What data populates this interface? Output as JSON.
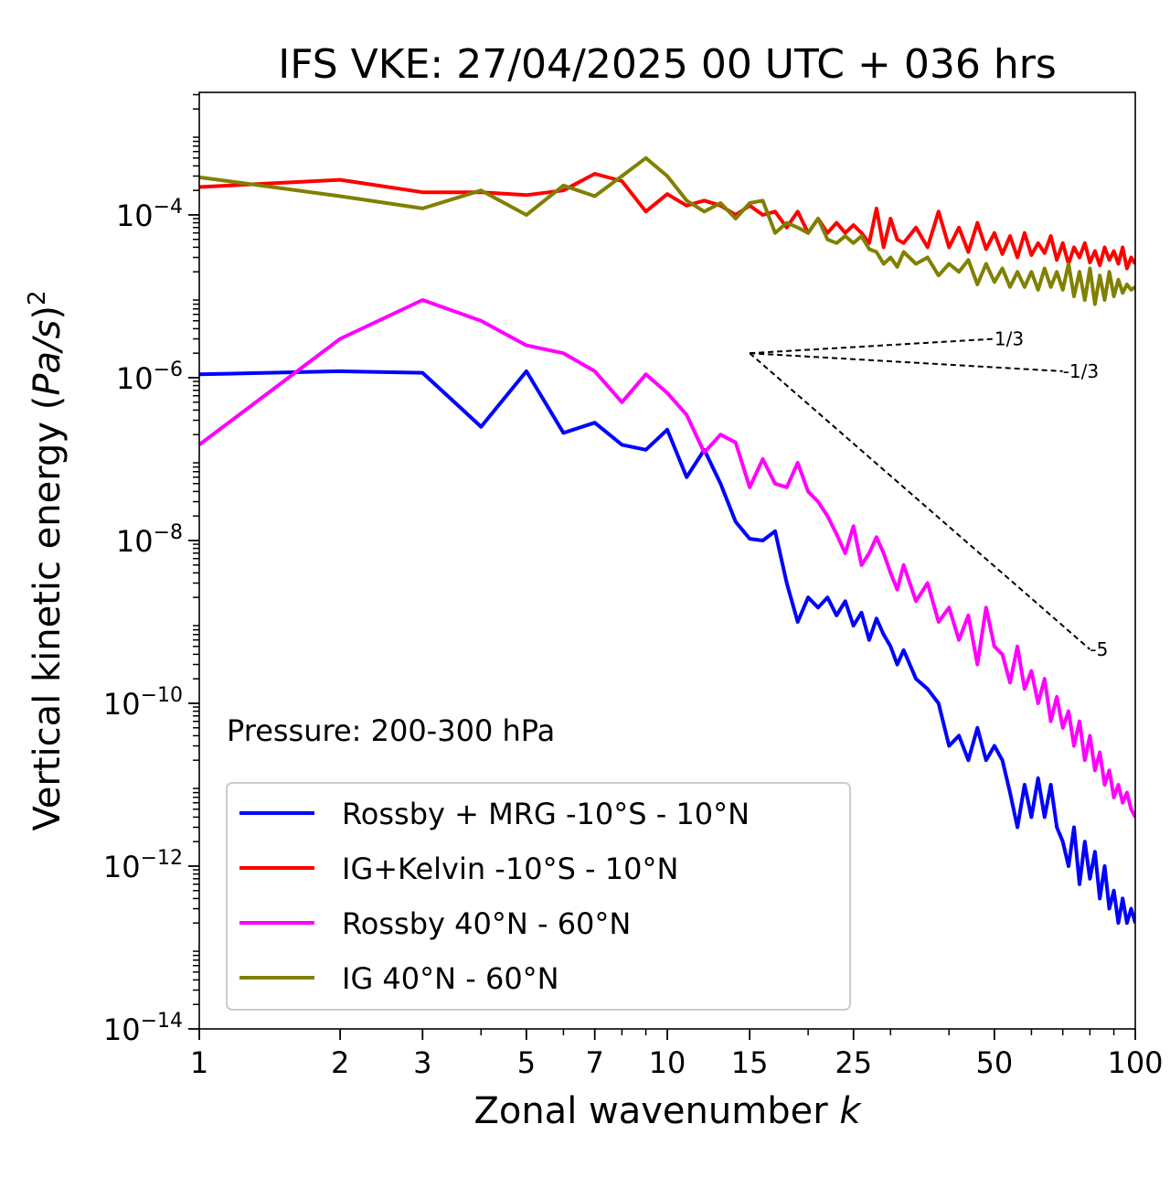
{
  "chart_data": {
    "type": "line",
    "title": "IFS VKE: 27/04/2025 00 UTC + 036 hrs",
    "xlabel": "Zonal wavenumber k",
    "xlabel_main": "Zonal wavenumber ",
    "xlabel_var": "k",
    "ylabel": "Vertical kinetic energy (Pa/s)^2",
    "ylabel_main": "Vertical kinetic energy (",
    "ylabel_var": "Pa/s",
    "ylabel_close": ")",
    "ylabel_sup": "2",
    "x_scale": "log",
    "y_scale": "log",
    "xlim": [
      1,
      100
    ],
    "ylim": [
      1e-14,
      0.0032
    ],
    "x_ticks": [
      {
        "value": 1,
        "label": "1"
      },
      {
        "value": 2,
        "label": "2"
      },
      {
        "value": 3,
        "label": "3"
      },
      {
        "value": 5,
        "label": "5"
      },
      {
        "value": 7,
        "label": "7"
      },
      {
        "value": 10,
        "label": "10"
      },
      {
        "value": 15,
        "label": "15"
      },
      {
        "value": 25,
        "label": "25"
      },
      {
        "value": 50,
        "label": "50"
      },
      {
        "value": 100,
        "label": "100"
      }
    ],
    "y_ticks": [
      {
        "value": 0.0001,
        "base": "10",
        "exp": "−4"
      },
      {
        "value": 1e-06,
        "base": "10",
        "exp": "−6"
      },
      {
        "value": 1e-08,
        "base": "10",
        "exp": "−8"
      },
      {
        "value": 1e-10,
        "base": "10",
        "exp": "−10"
      },
      {
        "value": 1e-12,
        "base": "10",
        "exp": "−12"
      },
      {
        "value": 1e-14,
        "base": "10",
        "exp": "−14"
      }
    ],
    "annotation": "Pressure: 200-300 hPa",
    "legend_position": "lower-left",
    "grid": false,
    "slope_lines": [
      {
        "label": "1/3",
        "x": [
          15,
          50
        ],
        "y": [
          2e-06,
          3e-06
        ]
      },
      {
        "label": "-1/3",
        "x": [
          15,
          70
        ],
        "y": [
          2e-06,
          1.2e-06
        ]
      },
      {
        "label": "-5",
        "x": [
          15,
          80
        ],
        "y": [
          2e-06,
          4.6e-10
        ]
      }
    ],
    "series": [
      {
        "name": "Rossby + MRG -10°S - 10°N",
        "color": "#0000ff",
        "points": [
          [
            1,
            1.1e-06
          ],
          [
            2,
            1.2e-06
          ],
          [
            3,
            1.15e-06
          ],
          [
            4,
            2.5e-07
          ],
          [
            5,
            1.2e-06
          ],
          [
            6,
            2.1e-07
          ],
          [
            7,
            2.8e-07
          ],
          [
            8,
            1.5e-07
          ],
          [
            9,
            1.3e-07
          ],
          [
            10,
            2.3e-07
          ],
          [
            11,
            6e-08
          ],
          [
            12,
            1.3e-07
          ],
          [
            13,
            5e-08
          ],
          [
            14,
            1.7e-08
          ],
          [
            15,
            1.05e-08
          ],
          [
            16,
            1e-08
          ],
          [
            17,
            1.3e-08
          ],
          [
            18,
            3e-09
          ],
          [
            19,
            1e-09
          ],
          [
            20,
            2e-09
          ],
          [
            21,
            1.5e-09
          ],
          [
            22,
            2e-09
          ],
          [
            23,
            1.2e-09
          ],
          [
            24,
            1.8e-09
          ],
          [
            25,
            9e-10
          ],
          [
            26,
            1.3e-09
          ],
          [
            27,
            6e-10
          ],
          [
            28,
            1.1e-09
          ],
          [
            29,
            7e-10
          ],
          [
            30,
            5e-10
          ],
          [
            31,
            3e-10
          ],
          [
            32,
            4.5e-10
          ],
          [
            34,
            2e-10
          ],
          [
            36,
            1.5e-10
          ],
          [
            38,
            1e-10
          ],
          [
            40,
            3e-11
          ],
          [
            42,
            4e-11
          ],
          [
            44,
            2e-11
          ],
          [
            46,
            5e-11
          ],
          [
            48,
            2e-11
          ],
          [
            50,
            3e-11
          ],
          [
            52,
            2e-11
          ],
          [
            54,
            8e-12
          ],
          [
            56,
            3e-12
          ],
          [
            58,
            1e-11
          ],
          [
            60,
            4e-12
          ],
          [
            62,
            1.2e-11
          ],
          [
            64,
            4e-12
          ],
          [
            66,
            1e-11
          ],
          [
            68,
            3e-12
          ],
          [
            70,
            2e-12
          ],
          [
            72,
            1e-12
          ],
          [
            74,
            3e-12
          ],
          [
            76,
            6e-13
          ],
          [
            78,
            2e-12
          ],
          [
            80,
            7e-13
          ],
          [
            82,
            1.5e-12
          ],
          [
            84,
            4e-13
          ],
          [
            86,
            1e-12
          ],
          [
            88,
            3e-13
          ],
          [
            90,
            5e-13
          ],
          [
            92,
            2e-13
          ],
          [
            94,
            4e-13
          ],
          [
            96,
            2e-13
          ],
          [
            98,
            3e-13
          ],
          [
            100,
            2e-13
          ]
        ]
      },
      {
        "name": "IG+Kelvin -10°S - 10°N",
        "color": "#ff0000",
        "points": [
          [
            1,
            0.00022
          ],
          [
            2,
            0.00027
          ],
          [
            3,
            0.00019
          ],
          [
            4,
            0.00019
          ],
          [
            5,
            0.000175
          ],
          [
            6,
            0.0002
          ],
          [
            7,
            0.00032
          ],
          [
            8,
            0.00026
          ],
          [
            9,
            0.00011
          ],
          [
            10,
            0.00018
          ],
          [
            11,
            0.00013
          ],
          [
            12,
            0.00015
          ],
          [
            13,
            0.00013
          ],
          [
            14,
            0.0001
          ],
          [
            15,
            0.00013
          ],
          [
            16,
            0.0001
          ],
          [
            17,
            0.00011
          ],
          [
            18,
            7e-05
          ],
          [
            19,
            0.00011
          ],
          [
            20,
            6e-05
          ],
          [
            21,
            9e-05
          ],
          [
            22,
            6e-05
          ],
          [
            23,
            8e-05
          ],
          [
            24,
            6e-05
          ],
          [
            25,
            7.5e-05
          ],
          [
            26,
            6e-05
          ],
          [
            27,
            4.5e-05
          ],
          [
            28,
            0.00012
          ],
          [
            29,
            4e-05
          ],
          [
            30,
            9e-05
          ],
          [
            31,
            5e-05
          ],
          [
            32,
            4.5e-05
          ],
          [
            34,
            7e-05
          ],
          [
            36,
            4e-05
          ],
          [
            38,
            0.00011
          ],
          [
            40,
            4e-05
          ],
          [
            42,
            7e-05
          ],
          [
            44,
            3.5e-05
          ],
          [
            46,
            8e-05
          ],
          [
            48,
            3.8e-05
          ],
          [
            50,
            6e-05
          ],
          [
            52,
            3.3e-05
          ],
          [
            54,
            5.5e-05
          ],
          [
            56,
            3e-05
          ],
          [
            58,
            6e-05
          ],
          [
            60,
            3.2e-05
          ],
          [
            62,
            4.5e-05
          ],
          [
            64,
            3.4e-05
          ],
          [
            66,
            5.5e-05
          ],
          [
            68,
            2.8e-05
          ],
          [
            70,
            4.5e-05
          ],
          [
            72,
            2.5e-05
          ],
          [
            74,
            4e-05
          ],
          [
            76,
            3e-05
          ],
          [
            78,
            4.5e-05
          ],
          [
            80,
            2.6e-05
          ],
          [
            82,
            3.6e-05
          ],
          [
            84,
            2.4e-05
          ],
          [
            86,
            4e-05
          ],
          [
            88,
            2.8e-05
          ],
          [
            90,
            3.6e-05
          ],
          [
            92,
            2.5e-05
          ],
          [
            94,
            4e-05
          ],
          [
            96,
            2.2e-05
          ],
          [
            98,
            3e-05
          ],
          [
            100,
            2.5e-05
          ]
        ]
      },
      {
        "name": "Rossby 40°N - 60°N",
        "color": "#ff00ff",
        "points": [
          [
            1,
            1.5e-07
          ],
          [
            2,
            3e-06
          ],
          [
            3,
            9e-06
          ],
          [
            4,
            5e-06
          ],
          [
            5,
            2.5e-06
          ],
          [
            6,
            2e-06
          ],
          [
            7,
            1.2e-06
          ],
          [
            8,
            5e-07
          ],
          [
            9,
            1.1e-06
          ],
          [
            10,
            6.5e-07
          ],
          [
            11,
            3.5e-07
          ],
          [
            12,
            1.2e-07
          ],
          [
            13,
            2e-07
          ],
          [
            14,
            1.6e-07
          ],
          [
            15,
            4.5e-08
          ],
          [
            16,
            1e-07
          ],
          [
            17,
            5e-08
          ],
          [
            18,
            4.5e-08
          ],
          [
            19,
            9e-08
          ],
          [
            20,
            4e-08
          ],
          [
            21,
            3e-08
          ],
          [
            22,
            2e-08
          ],
          [
            23,
            1.2e-08
          ],
          [
            24,
            7e-09
          ],
          [
            25,
            1.5e-08
          ],
          [
            26,
            5e-09
          ],
          [
            27,
            7e-09
          ],
          [
            28,
            1.1e-08
          ],
          [
            29,
            7e-09
          ],
          [
            30,
            4e-09
          ],
          [
            31,
            2.5e-09
          ],
          [
            32,
            5e-09
          ],
          [
            34,
            1.8e-09
          ],
          [
            36,
            3e-09
          ],
          [
            38,
            1e-09
          ],
          [
            40,
            1.5e-09
          ],
          [
            42,
            6e-10
          ],
          [
            44,
            1.2e-09
          ],
          [
            46,
            3e-10
          ],
          [
            48,
            1.5e-09
          ],
          [
            50,
            5e-10
          ],
          [
            52,
            4e-10
          ],
          [
            54,
            1.8e-10
          ],
          [
            56,
            5e-10
          ],
          [
            58,
            1.5e-10
          ],
          [
            60,
            2.5e-10
          ],
          [
            62,
            1e-10
          ],
          [
            64,
            2e-10
          ],
          [
            66,
            6e-11
          ],
          [
            68,
            1.2e-10
          ],
          [
            70,
            5e-11
          ],
          [
            72,
            8e-11
          ],
          [
            74,
            3e-11
          ],
          [
            76,
            6e-11
          ],
          [
            78,
            2e-11
          ],
          [
            80,
            4e-11
          ],
          [
            82,
            1.5e-11
          ],
          [
            84,
            2.5e-11
          ],
          [
            86,
            1e-11
          ],
          [
            88,
            1.5e-11
          ],
          [
            90,
            7e-12
          ],
          [
            92,
            1e-11
          ],
          [
            94,
            6e-12
          ],
          [
            96,
            8e-12
          ],
          [
            98,
            5e-12
          ],
          [
            100,
            4e-12
          ]
        ]
      },
      {
        "name": "IG 40°N - 60°N",
        "color": "#808000",
        "points": [
          [
            1,
            0.00029
          ],
          [
            2,
            0.00017
          ],
          [
            3,
            0.00012
          ],
          [
            4,
            0.0002
          ],
          [
            5,
            0.0001
          ],
          [
            6,
            0.00023
          ],
          [
            7,
            0.00017
          ],
          [
            8,
            0.0003
          ],
          [
            9,
            0.0005
          ],
          [
            10,
            0.0003
          ],
          [
            11,
            0.00015
          ],
          [
            12,
            0.00011
          ],
          [
            13,
            0.00014
          ],
          [
            14,
            9e-05
          ],
          [
            15,
            0.00014
          ],
          [
            16,
            0.00015
          ],
          [
            17,
            6e-05
          ],
          [
            18,
            8e-05
          ],
          [
            19,
            7e-05
          ],
          [
            20,
            6e-05
          ],
          [
            21,
            9e-05
          ],
          [
            22,
            5e-05
          ],
          [
            23,
            4.5e-05
          ],
          [
            24,
            5.5e-05
          ],
          [
            25,
            4.5e-05
          ],
          [
            26,
            5.5e-05
          ],
          [
            27,
            3.8e-05
          ],
          [
            28,
            3.5e-05
          ],
          [
            29,
            2.5e-05
          ],
          [
            30,
            3e-05
          ],
          [
            31,
            2.3e-05
          ],
          [
            32,
            3.5e-05
          ],
          [
            34,
            2.5e-05
          ],
          [
            36,
            3e-05
          ],
          [
            38,
            1.8e-05
          ],
          [
            40,
            2.5e-05
          ],
          [
            42,
            2e-05
          ],
          [
            44,
            2.8e-05
          ],
          [
            46,
            1.4e-05
          ],
          [
            48,
            2.5e-05
          ],
          [
            50,
            1.5e-05
          ],
          [
            52,
            2.2e-05
          ],
          [
            54,
            1.3e-05
          ],
          [
            56,
            2e-05
          ],
          [
            58,
            1.3e-05
          ],
          [
            60,
            2e-05
          ],
          [
            62,
            1.2e-05
          ],
          [
            64,
            2.2e-05
          ],
          [
            66,
            1.3e-05
          ],
          [
            68,
            2e-05
          ],
          [
            70,
            1.2e-05
          ],
          [
            72,
            2.5e-05
          ],
          [
            74,
            1e-05
          ],
          [
            76,
            2e-05
          ],
          [
            78,
            9e-06
          ],
          [
            80,
            2.2e-05
          ],
          [
            82,
            8e-06
          ],
          [
            84,
            1.8e-05
          ],
          [
            86,
            9e-06
          ],
          [
            88,
            2e-05
          ],
          [
            90,
            1e-05
          ],
          [
            92,
            1.6e-05
          ],
          [
            94,
            1.1e-05
          ],
          [
            96,
            1.4e-05
          ],
          [
            98,
            1.2e-05
          ],
          [
            100,
            1.3e-05
          ]
        ]
      }
    ]
  }
}
